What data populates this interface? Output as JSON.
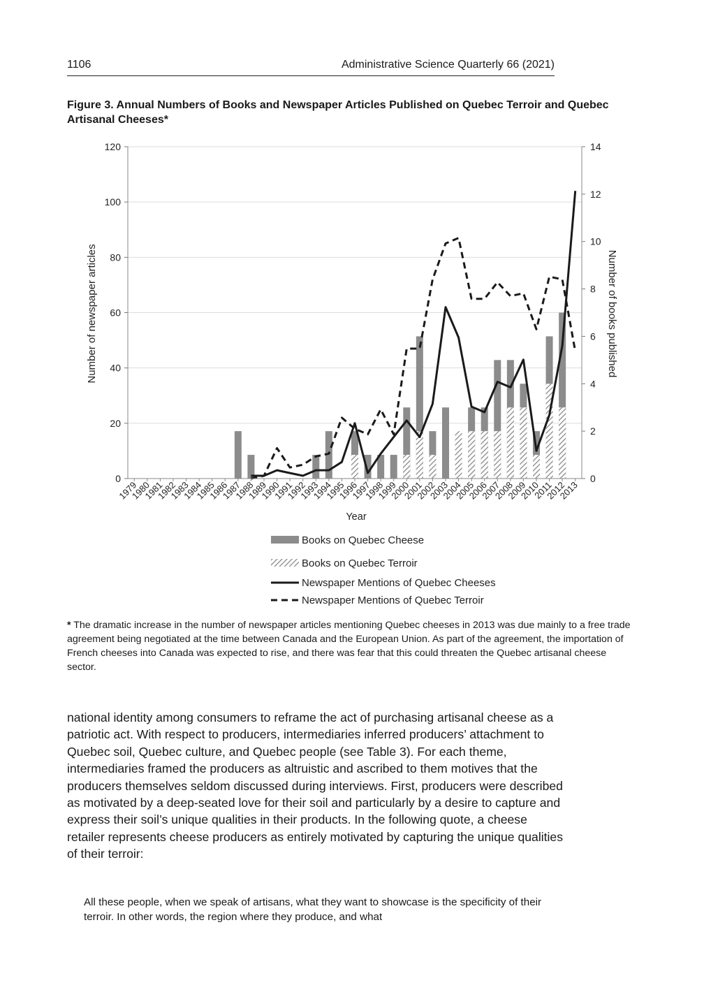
{
  "header": {
    "page_number": "1106",
    "journal": "Administrative Science Quarterly 66 (2021)"
  },
  "figure": {
    "caption": "Figure 3.  Annual Numbers of Books and Newspaper Articles Published on Quebec Terroir and Quebec Artisanal Cheeses*"
  },
  "chart_data": {
    "type": "bar",
    "xlabel": "Year",
    "ylabel_left": "Number of newspaper articles",
    "ylabel_right": "Number of books published",
    "ylim_left": [
      0,
      120
    ],
    "ylim_right": [
      0,
      14
    ],
    "yticks_left": [
      "0",
      "20",
      "40",
      "60",
      "80",
      "100",
      "120"
    ],
    "yticks_right": [
      "0",
      "2",
      "4",
      "6",
      "8",
      "10",
      "12",
      "14"
    ],
    "grid": true,
    "legend_position": "bottom",
    "categories": [
      "1979",
      "1980",
      "1981",
      "1982",
      "1983",
      "1984",
      "1985",
      "1986",
      "1987",
      "1988",
      "1989",
      "1990",
      "1991",
      "1992",
      "1993",
      "1994",
      "1995",
      "1996",
      "1997",
      "1998",
      "1999",
      "2000",
      "2001",
      "2002",
      "2003",
      "2004",
      "2005",
      "2006",
      "2007",
      "2008",
      "2009",
      "2010",
      "2011",
      "2012",
      "2013"
    ],
    "series": [
      {
        "name": "Books on Quebec Cheese",
        "kind": "bar",
        "axis": "right",
        "color": "#8c8c8c",
        "values": [
          0,
          0,
          0,
          0,
          0,
          0,
          0,
          0,
          2,
          1,
          0,
          0,
          0,
          0,
          1,
          2,
          0,
          2,
          1,
          1,
          1,
          3,
          6,
          2,
          3,
          0,
          3,
          3,
          5,
          5,
          4,
          2,
          6,
          7,
          0
        ]
      },
      {
        "name": "Books on Quebec Terroir",
        "kind": "bar-hatched",
        "axis": "right",
        "color": "#9a9a9a",
        "values": [
          0,
          0,
          0,
          0,
          0,
          0,
          0,
          0,
          0,
          0,
          0,
          0,
          0,
          0,
          0,
          0,
          0,
          1,
          0,
          0,
          0,
          1,
          2,
          1,
          0,
          2,
          2,
          2,
          2,
          3,
          3,
          1,
          4,
          3,
          0
        ]
      },
      {
        "name": "Newspaper Mentions of Quebec Cheeses",
        "kind": "line-solid",
        "axis": "left",
        "color": "#1a1a1a",
        "values": [
          null,
          null,
          null,
          null,
          null,
          null,
          null,
          null,
          null,
          1,
          1,
          3,
          2,
          1,
          3,
          3,
          6,
          20,
          2,
          9,
          15,
          21,
          15,
          27,
          62,
          51,
          26,
          24,
          35,
          33,
          43,
          10,
          23,
          48,
          104
        ]
      },
      {
        "name": "Newspaper Mentions of Quebec Terroir",
        "kind": "line-dashed",
        "axis": "left",
        "color": "#1a1a1a",
        "values": [
          null,
          null,
          null,
          null,
          null,
          null,
          null,
          null,
          null,
          0,
          1,
          11,
          4,
          5,
          8,
          9,
          22,
          18,
          16,
          25,
          16,
          47,
          47,
          72,
          85,
          87,
          65,
          65,
          71,
          66,
          67,
          54,
          73,
          72,
          46
        ]
      }
    ]
  },
  "footnote": {
    "marker": "*",
    "text": " The dramatic increase in the number of newspaper articles mentioning Quebec cheeses in 2013 was due mainly to a free trade agreement being negotiated at the time between Canada and the European Union. As part of the agreement, the importation of French cheeses into Canada was expected to rise, and there was fear that this could threaten the Quebec artisanal cheese sector."
  },
  "body_text": "national identity among consumers to reframe the act of purchasing artisanal cheese as a patriotic act. With respect to producers, intermediaries inferred producers’ attachment to Quebec soil, Quebec culture, and Quebec people (see Table 3). For each theme, intermediaries framed the producers as altruistic and ascribed to them motives that the producers themselves seldom discussed during interviews. First, producers were described as motivated by a deep-seated love for their soil and particularly by a desire to capture and express their soil’s unique qualities in their products. In the following quote, a cheese retailer represents cheese producers as entirely motivated by capturing the unique qualities of their terroir:",
  "quote": "All these people, when we speak of artisans, what they want to showcase is the specificity of their terroir. In other words, the region where they produce, and what"
}
